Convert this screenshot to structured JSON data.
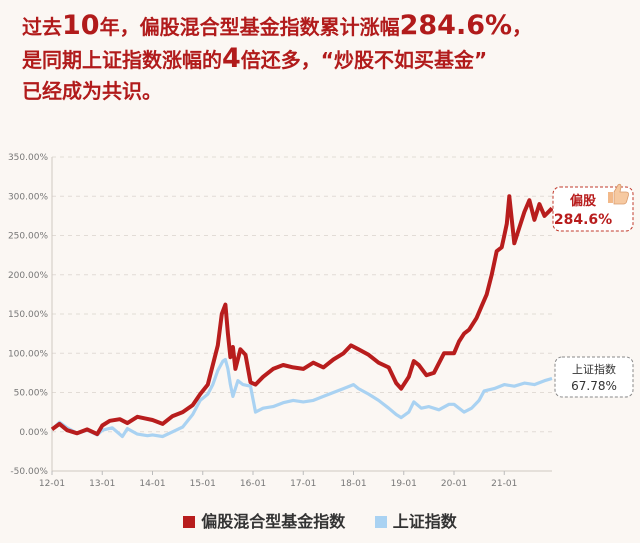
{
  "headline": {
    "line1_a": "过去",
    "line1_b": "10",
    "line1_c": "年，偏股混合型基金指数累计涨幅",
    "line1_d": "284.6%",
    "line1_e": "，",
    "line2_a": "是同期上证指数涨幅的",
    "line2_b": "4",
    "line2_c": "倍还多，“炒股不如买基金”",
    "line3": "已经成为共识。"
  },
  "colors": {
    "fund": "#b81d1d",
    "shanghai": "#a9d2f2",
    "headline": "#b11b1b"
  },
  "callouts": {
    "fund_name": "偏股",
    "fund_value": "284.6%",
    "fund_icon": "thumbs-up-icon",
    "shanghai_name": "上证指数",
    "shanghai_value": "67.78%"
  },
  "chart_data": {
    "type": "line",
    "x_ticks": [
      "12-01",
      "13-01",
      "14-01",
      "15-01",
      "16-01",
      "17-01",
      "18-01",
      "19-01",
      "20-01",
      "21-01"
    ],
    "y_ticks": [
      "350.00%",
      "300.00%",
      "250.00%",
      "200.00%",
      "150.00%",
      "100.00%",
      "50.00%",
      "0.00%",
      "-50.00%"
    ],
    "ylim": [
      -50,
      350
    ],
    "xlim": [
      2012.0,
      2021.95
    ],
    "grid": true,
    "legend_position": "bottom",
    "series": [
      {
        "name": "偏股混合型基金指数",
        "x": [
          2012.0,
          2012.15,
          2012.3,
          2012.5,
          2012.7,
          2012.9,
          2013.0,
          2013.15,
          2013.35,
          2013.5,
          2013.7,
          2013.85,
          2014.0,
          2014.2,
          2014.4,
          2014.6,
          2014.8,
          2014.95,
          2015.1,
          2015.2,
          2015.3,
          2015.38,
          2015.45,
          2015.5,
          2015.55,
          2015.6,
          2015.65,
          2015.75,
          2015.85,
          2015.95,
          2016.05,
          2016.2,
          2016.4,
          2016.6,
          2016.8,
          2017.0,
          2017.2,
          2017.4,
          2017.6,
          2017.8,
          2017.95,
          2018.1,
          2018.3,
          2018.5,
          2018.7,
          2018.85,
          2018.95,
          2019.1,
          2019.2,
          2019.3,
          2019.45,
          2019.6,
          2019.8,
          2020.0,
          2020.1,
          2020.2,
          2020.3,
          2020.45,
          2020.55,
          2020.65,
          2020.75,
          2020.85,
          2020.95,
          2021.0,
          2021.05,
          2021.1,
          2021.2,
          2021.3,
          2021.4,
          2021.5,
          2021.6,
          2021.7,
          2021.8,
          2021.95
        ],
        "y": [
          3,
          10,
          2,
          -2,
          3,
          -3,
          8,
          14,
          16,
          11,
          19,
          17,
          15,
          10,
          20,
          25,
          34,
          48,
          60,
          85,
          110,
          150,
          162,
          125,
          95,
          108,
          80,
          105,
          98,
          63,
          60,
          70,
          80,
          85,
          82,
          80,
          88,
          82,
          92,
          100,
          110,
          105,
          98,
          88,
          82,
          62,
          55,
          70,
          90,
          85,
          72,
          75,
          100,
          100,
          115,
          125,
          130,
          145,
          160,
          175,
          200,
          230,
          235,
          250,
          265,
          300,
          240,
          260,
          280,
          295,
          270,
          290,
          275,
          284.6
        ]
      },
      {
        "name": "上证指数",
        "x": [
          2012.0,
          2012.15,
          2012.3,
          2012.5,
          2012.7,
          2012.9,
          2013.0,
          2013.2,
          2013.4,
          2013.5,
          2013.7,
          2013.9,
          2014.0,
          2014.2,
          2014.4,
          2014.6,
          2014.8,
          2014.95,
          2015.1,
          2015.2,
          2015.3,
          2015.4,
          2015.45,
          2015.5,
          2015.55,
          2015.6,
          2015.7,
          2015.8,
          2015.95,
          2016.05,
          2016.2,
          2016.4,
          2016.6,
          2016.8,
          2017.0,
          2017.2,
          2017.4,
          2017.6,
          2017.8,
          2018.0,
          2018.1,
          2018.3,
          2018.5,
          2018.7,
          2018.85,
          2018.95,
          2019.1,
          2019.2,
          2019.35,
          2019.5,
          2019.7,
          2019.9,
          2020.0,
          2020.2,
          2020.35,
          2020.5,
          2020.6,
          2020.8,
          2021.0,
          2021.2,
          2021.4,
          2021.6,
          2021.8,
          2021.95
        ],
        "y": [
          3,
          12,
          5,
          -2,
          2,
          -4,
          2,
          5,
          -6,
          4,
          -3,
          -5,
          -4,
          -6,
          0,
          6,
          22,
          40,
          48,
          60,
          78,
          90,
          92,
          80,
          60,
          45,
          65,
          60,
          58,
          25,
          30,
          32,
          37,
          40,
          38,
          40,
          45,
          50,
          55,
          60,
          55,
          48,
          40,
          30,
          22,
          18,
          25,
          38,
          30,
          32,
          28,
          35,
          35,
          25,
          30,
          40,
          52,
          55,
          60,
          58,
          62,
          60,
          65,
          67.78
        ]
      }
    ]
  }
}
